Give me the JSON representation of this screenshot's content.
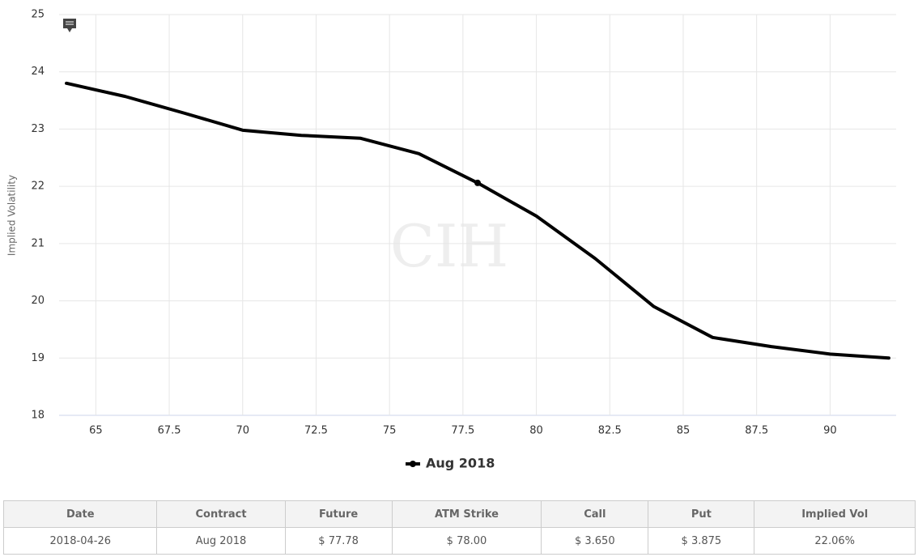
{
  "chart_data": {
    "type": "line",
    "y_label": "Implied Volatility",
    "watermark": "CIH",
    "x": [
      64,
      66,
      68,
      70,
      72,
      74,
      76,
      78,
      80,
      82,
      84,
      86,
      88,
      90,
      92
    ],
    "series": [
      {
        "name": "Aug 2018",
        "color": "#000000",
        "values": [
          23.8,
          23.57,
          23.28,
          22.98,
          22.89,
          22.84,
          22.57,
          22.06,
          21.48,
          20.74,
          19.9,
          19.36,
          19.2,
          19.07,
          19.0
        ],
        "highlight": {
          "x": 78,
          "y": 22.06
        }
      }
    ],
    "xlim": [
      63.75,
      92.25
    ],
    "xticks": [
      65,
      67.5,
      70,
      72.5,
      75,
      77.5,
      80,
      82.5,
      85,
      87.5,
      90
    ],
    "ylim": [
      18,
      25
    ],
    "yticks": [
      18,
      19,
      20,
      21,
      22,
      23,
      24,
      25
    ],
    "grid": true,
    "legend": "bottom"
  },
  "table": {
    "header": [
      "Date",
      "Contract",
      "Future",
      "ATM Strike",
      "Call",
      "Put",
      "Implied Vol"
    ],
    "rows": [
      [
        "2018-04-26",
        "Aug 2018",
        "$ 77.78",
        "$ 78.00",
        "$ 3.650",
        "$ 3.875",
        "22.06%"
      ]
    ]
  }
}
